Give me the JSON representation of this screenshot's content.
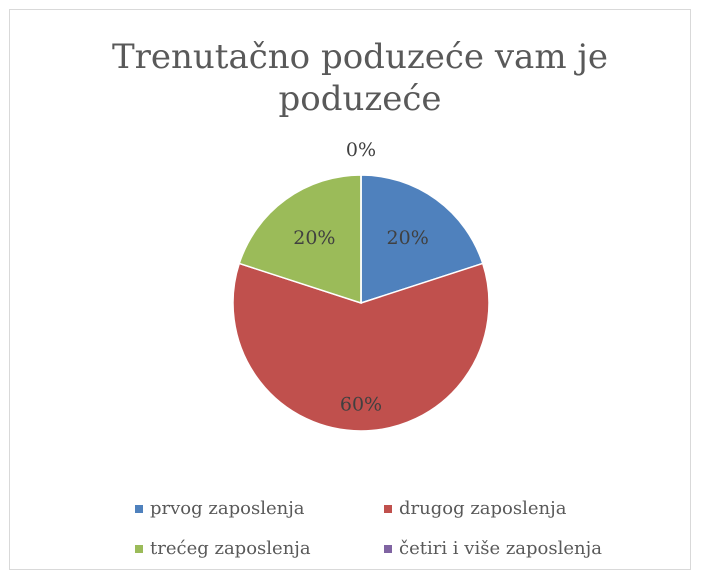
{
  "chart_data": {
    "type": "pie",
    "title": "Trenutačno poduzeće vam je poduzeće",
    "categories": [
      "prvog zaposlenja",
      "drugog zaposlenja",
      "trećeg zaposlenja",
      "četiri i više zaposlenja"
    ],
    "values": [
      20,
      60,
      20,
      0
    ],
    "value_labels": [
      "20%",
      "60%",
      "20%",
      "0%"
    ],
    "colors": [
      "#4f81bd",
      "#c0504d",
      "#9bbb59",
      "#8064a2"
    ],
    "legend": "bottom"
  }
}
